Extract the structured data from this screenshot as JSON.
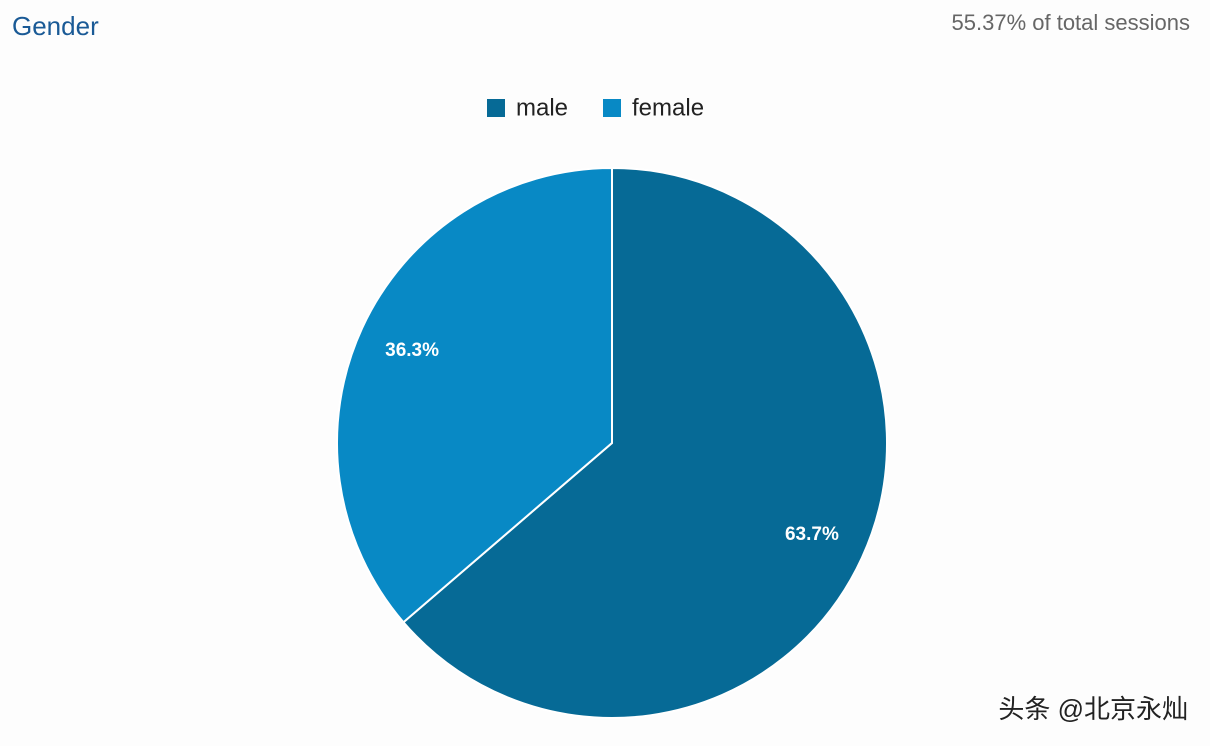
{
  "chart_data": {
    "type": "pie",
    "title": "Gender",
    "subtitle": "55.37% of total sessions",
    "categories": [
      "male",
      "female"
    ],
    "values": [
      63.7,
      36.3
    ],
    "value_labels": [
      "63.7%",
      "36.3%"
    ],
    "colors": [
      "#066a96",
      "#0889c5"
    ],
    "legend": "top",
    "watermark": "头条 @北京永灿"
  }
}
